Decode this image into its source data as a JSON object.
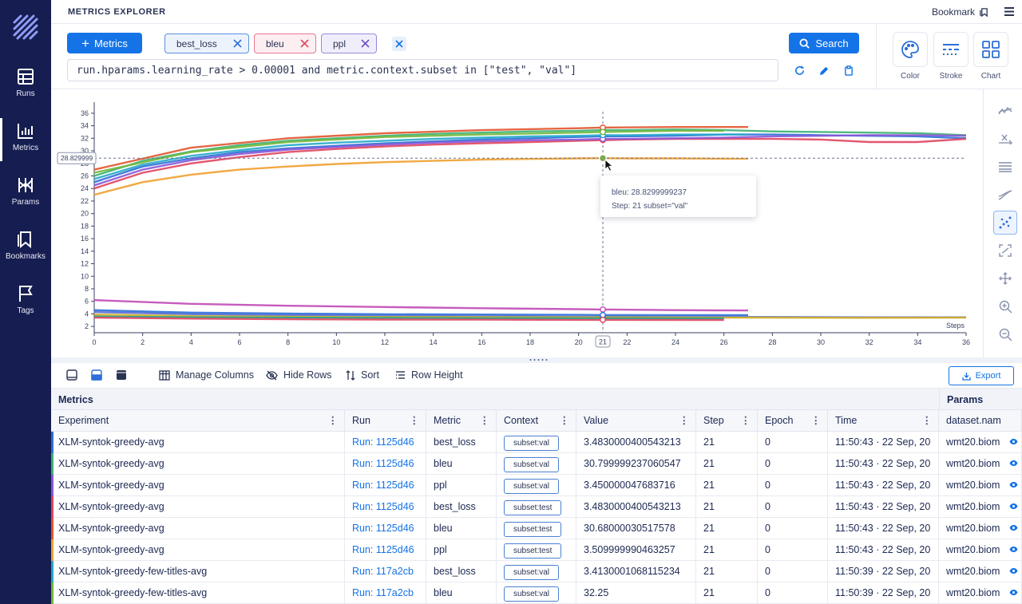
{
  "app": {
    "title": "METRICS EXPLORER",
    "bookmark_label": "Bookmark"
  },
  "sidebar": {
    "items": [
      {
        "label": "Runs",
        "icon": "table-icon"
      },
      {
        "label": "Metrics",
        "icon": "chart-icon",
        "active": true
      },
      {
        "label": "Params",
        "icon": "params-icon"
      },
      {
        "label": "Bookmarks",
        "icon": "bookmarks-icon"
      },
      {
        "label": "Tags",
        "icon": "flag-icon"
      }
    ]
  },
  "query": {
    "add_metrics_label": "Metrics",
    "chips": [
      {
        "label": "best_loss",
        "color": "#2d6fd8"
      },
      {
        "label": "bleu",
        "color": "#e0455f"
      },
      {
        "label": "ppl",
        "color": "#6b52c8"
      }
    ],
    "search_label": "Search",
    "expression": "run.hparams.learning_rate > 0.00001 and metric.context.subset in [\"test\", \"val\"]"
  },
  "controls": [
    {
      "label": "Color",
      "icon": "palette-icon"
    },
    {
      "label": "Stroke",
      "icon": "stroke-icon"
    },
    {
      "label": "Chart",
      "icon": "grid-icon"
    }
  ],
  "chart": {
    "y_ticks": [
      "2",
      "4",
      "6",
      "8",
      "10",
      "12",
      "14",
      "16",
      "18",
      "20",
      "22",
      "24",
      "26",
      "28",
      "30",
      "32",
      "34",
      "36"
    ],
    "x_ticks": [
      "0",
      "2",
      "4",
      "6",
      "8",
      "10",
      "12",
      "14",
      "16",
      "18",
      "20",
      "21",
      "22",
      "24",
      "26",
      "28",
      "30",
      "32",
      "34",
      "36"
    ],
    "x_axis_label": "Steps",
    "crosshair_y_label": "28.829999",
    "tooltip_line1": "bleu: 28.8299999237",
    "tooltip_line2": "Step: 21 subset=\"val\"",
    "hover_step": 21,
    "hover_value": 28.83
  },
  "chart_data": {
    "type": "line",
    "xlabel": "Steps",
    "xlim": [
      0,
      36
    ],
    "ylim": [
      1,
      37
    ],
    "x_ticks": [
      0,
      2,
      4,
      6,
      8,
      10,
      12,
      14,
      16,
      18,
      20,
      22,
      24,
      26,
      28,
      30,
      32,
      34,
      36
    ],
    "y_ticks": [
      2,
      4,
      6,
      8,
      10,
      12,
      14,
      16,
      18,
      20,
      22,
      24,
      26,
      28,
      30,
      32,
      34,
      36
    ],
    "series": [
      {
        "x": [
          0,
          2,
          4,
          6,
          8,
          10,
          12,
          14,
          16,
          18,
          20,
          21,
          22,
          24,
          26,
          28,
          30,
          32,
          34,
          36
        ],
        "values": [
          25,
          27.5,
          28.8,
          29.8,
          30.4,
          30.8,
          31.2,
          31.5,
          31.8,
          32,
          32.2,
          32.3,
          32.3,
          32.4,
          32.6,
          32.6,
          32.5,
          32.4,
          32.3,
          32
        ]
      },
      {
        "x": [
          0,
          2,
          4,
          6,
          8,
          10,
          12,
          14,
          16,
          18,
          20,
          21,
          22,
          24,
          26,
          28,
          30,
          32,
          34,
          36
        ],
        "values": [
          24,
          26.5,
          28,
          29,
          29.8,
          30.3,
          30.7,
          31,
          31.2,
          31.4,
          31.6,
          31.7,
          31.8,
          31.9,
          31.9,
          31.9,
          31.8,
          31.4,
          31.4,
          31.9
        ]
      },
      {
        "x": [
          0,
          2,
          4,
          6,
          8,
          10,
          12,
          14,
          16,
          18,
          20,
          21,
          22,
          24,
          26,
          28,
          30,
          32,
          34,
          36
        ],
        "values": [
          26,
          28.4,
          29.9,
          30.9,
          31.6,
          32,
          32.4,
          32.7,
          32.9,
          33.1,
          33.2,
          33.3,
          33.3,
          33.4,
          33.3,
          33.1,
          33,
          32.9,
          32.8,
          32.5
        ]
      },
      {
        "x": [
          0,
          2,
          4,
          6,
          8,
          10,
          12,
          14,
          16,
          18,
          20,
          21,
          22,
          24,
          26,
          28,
          30,
          32,
          34,
          36
        ],
        "values": [
          24.5,
          27,
          28.5,
          29.5,
          30.2,
          30.6,
          31,
          31.3,
          31.5,
          31.7,
          31.8,
          31.9,
          31.9,
          32,
          32.1,
          32.3,
          32.4,
          32.5,
          32.5,
          32.4
        ]
      },
      {
        "x": [
          0,
          2,
          4,
          6,
          8,
          10,
          12,
          14,
          16,
          18,
          20,
          21,
          22,
          24,
          26,
          27
        ],
        "values": [
          23,
          25,
          26.2,
          27,
          27.5,
          27.9,
          28.2,
          28.4,
          28.6,
          28.7,
          28.8,
          28.83,
          28.8,
          28.8,
          28.75,
          28.75
        ]
      },
      {
        "x": [
          0,
          2,
          4,
          6,
          8,
          10,
          12,
          14,
          16,
          18,
          20,
          21,
          22,
          24,
          26,
          27
        ],
        "values": [
          25.5,
          27.8,
          29.2,
          30.1,
          30.9,
          31.3,
          31.6,
          31.9,
          32.1,
          32.3,
          32.4,
          32.5,
          32.5,
          32.6,
          32.6,
          32.6
        ]
      },
      {
        "x": [
          0,
          4,
          8,
          12,
          16,
          20,
          21,
          24,
          27
        ],
        "values": [
          27,
          30.5,
          32,
          32.8,
          33.3,
          33.6,
          33.7,
          33.8,
          33.8
        ]
      },
      {
        "x": [
          0,
          4,
          8,
          12,
          16,
          20,
          21,
          24,
          26
        ],
        "values": [
          26.5,
          29.8,
          31.4,
          32.2,
          32.6,
          32.9,
          33,
          33.2,
          33.2
        ]
      },
      {
        "x": [
          0,
          4,
          8,
          12,
          16,
          20,
          21,
          24,
          27
        ],
        "values": [
          6.2,
          5.6,
          5.3,
          5.1,
          4.9,
          4.75,
          4.7,
          4.6,
          4.55
        ]
      },
      {
        "x": [
          0,
          4,
          8,
          12,
          16,
          20,
          21,
          24,
          28,
          32,
          36
        ],
        "values": [
          4.3,
          3.95,
          3.8,
          3.7,
          3.62,
          3.55,
          3.55,
          3.5,
          3.5,
          3.45,
          3.45
        ]
      },
      {
        "x": [
          0,
          4,
          8,
          12,
          16,
          20,
          21,
          24,
          28,
          32,
          36
        ],
        "values": [
          3.9,
          3.65,
          3.55,
          3.5,
          3.48,
          3.45,
          3.45,
          3.42,
          3.4,
          3.38,
          3.4
        ]
      },
      {
        "x": [
          0,
          4,
          8,
          12,
          16,
          20,
          21,
          24,
          26
        ],
        "values": [
          3.6,
          3.45,
          3.4,
          3.35,
          3.32,
          3.3,
          3.3,
          3.28,
          3.28
        ]
      },
      {
        "x": [
          0,
          4,
          8,
          12,
          16,
          20,
          21,
          24,
          27
        ],
        "values": [
          4.6,
          4.2,
          4.05,
          3.95,
          3.9,
          3.85,
          3.82,
          3.8,
          3.8
        ]
      },
      {
        "x": [
          0,
          4,
          8,
          12,
          16,
          20,
          21,
          24,
          26
        ],
        "values": [
          3.4,
          3.25,
          3.15,
          3.1,
          3.08,
          3.05,
          3.05,
          3.03,
          3.02
        ]
      }
    ]
  },
  "right_tools": [
    {
      "icon": "smoothing-icon"
    },
    {
      "icon": "axes-scale-icon"
    },
    {
      "icon": "align-icon"
    },
    {
      "icon": "curve-icon"
    },
    {
      "icon": "highlight-points-icon",
      "active": true
    },
    {
      "icon": "zoom-mode-icon"
    },
    {
      "icon": "move-icon"
    },
    {
      "icon": "zoom-in-icon"
    },
    {
      "icon": "zoom-out-icon"
    }
  ],
  "table_toolbar": {
    "manage_columns": "Manage Columns",
    "hide_rows": "Hide Rows",
    "sort": "Sort",
    "row_height": "Row Height",
    "export": "Export"
  },
  "table": {
    "group_metrics": "Metrics",
    "group_params": "Params",
    "columns": [
      "Experiment",
      "Run",
      "Metric",
      "Context",
      "Value",
      "Step",
      "Epoch",
      "Time",
      "dataset.nam"
    ],
    "rows": [
      {
        "experiment": "XLM-syntok-greedy-avg",
        "run": "Run: 1125d46",
        "metric": "best_loss",
        "context": "subset:val",
        "value": "3.4830000400543213",
        "step": "21",
        "epoch": "0",
        "time": "11:50:43 · 22 Sep, 20",
        "dataset": "wmt20.biom",
        "color": "#2d6fd8"
      },
      {
        "experiment": "XLM-syntok-greedy-avg",
        "run": "Run: 1125d46",
        "metric": "bleu",
        "context": "subset:val",
        "value": "30.799999237060547",
        "step": "21",
        "epoch": "0",
        "time": "11:50:43 · 22 Sep, 20",
        "dataset": "wmt20.biom",
        "color": "#3bb273"
      },
      {
        "experiment": "XLM-syntok-greedy-avg",
        "run": "Run: 1125d46",
        "metric": "ppl",
        "context": "subset:val",
        "value": "3.450000047683716",
        "step": "21",
        "epoch": "0",
        "time": "11:50:43 · 22 Sep, 20",
        "dataset": "wmt20.biom",
        "color": "#8a55d6"
      },
      {
        "experiment": "XLM-syntok-greedy-avg",
        "run": "Run: 1125d46",
        "metric": "best_loss",
        "context": "subset:test",
        "value": "3.4830000400543213",
        "step": "21",
        "epoch": "0",
        "time": "11:50:43 · 22 Sep, 20",
        "dataset": "wmt20.biom",
        "color": "#e0455f"
      },
      {
        "experiment": "XLM-syntok-greedy-avg",
        "run": "Run: 1125d46",
        "metric": "bleu",
        "context": "subset:test",
        "value": "30.68000030517578",
        "step": "21",
        "epoch": "0",
        "time": "11:50:43 · 22 Sep, 20",
        "dataset": "wmt20.biom",
        "color": "#e2552f"
      },
      {
        "experiment": "XLM-syntok-greedy-avg",
        "run": "Run: 1125d46",
        "metric": "ppl",
        "context": "subset:test",
        "value": "3.509999990463257",
        "step": "21",
        "epoch": "0",
        "time": "11:50:43 · 22 Sep, 20",
        "dataset": "wmt20.biom",
        "color": "#f0a030"
      },
      {
        "experiment": "XLM-syntok-greedy-few-titles-avg",
        "run": "Run: 117a2cb",
        "metric": "best_loss",
        "context": "subset:val",
        "value": "3.4130001068115234",
        "step": "21",
        "epoch": "0",
        "time": "11:50:39 · 22 Sep, 20",
        "dataset": "wmt20.biom",
        "color": "#25a8c9"
      },
      {
        "experiment": "XLM-syntok-greedy-few-titles-avg",
        "run": "Run: 117a2cb",
        "metric": "bleu",
        "context": "subset:val",
        "value": "32.25",
        "step": "21",
        "epoch": "0",
        "time": "11:50:39 · 22 Sep, 20",
        "dataset": "wmt20.biom",
        "color": "#72b83a"
      }
    ]
  },
  "colors": {
    "sidebar_bg": "#161d50",
    "accent": "#1473e6",
    "line_palette": [
      "#2d6fd8",
      "#e0455f",
      "#3bb273",
      "#8a55d6",
      "#f0a030",
      "#25a8c9",
      "#e2552f",
      "#72b83a",
      "#c04ab6",
      "#5b6bd6",
      "#d4b020",
      "#1f9e89"
    ]
  }
}
